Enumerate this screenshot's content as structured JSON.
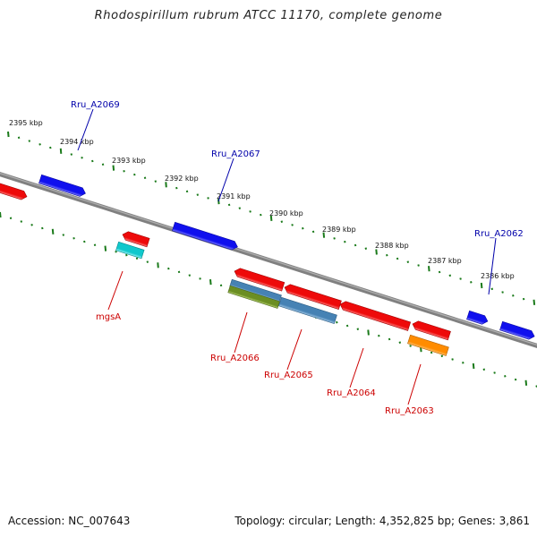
{
  "title": "Rhodospirillum rubrum ATCC 11170, complete genome",
  "footer": {
    "accession": "Accession: NC_007643",
    "summary": "Topology: circular; Length: 4,352,825 bp; Genes: 3,861"
  },
  "scale": {
    "ticks": [
      "2395 kbp",
      "2394 kbp",
      "2393 kbp",
      "2392 kbp",
      "2391 kbp",
      "2390 kbp",
      "2389 kbp",
      "2388 kbp",
      "2387 kbp",
      "2386 kbp"
    ]
  },
  "colors": {
    "backbone": "#808080",
    "tick": "#1a7a1a",
    "label_forward": "#0000aa",
    "label_reverse": "#cc0000",
    "blue": "#1010ee",
    "red": "#ee0a0a",
    "cyan": "#10c8cc",
    "steel": "#4682b4",
    "olive": "#6b8e23",
    "orange": "#ff8c00"
  },
  "genes": {
    "forward": [
      {
        "label": "Rru_A2069"
      },
      {
        "label": "Rru_A2067"
      },
      {
        "label": "Rru_A2062"
      }
    ],
    "reverse": [
      {
        "label": "mgsA"
      },
      {
        "label": "Rru_A2066"
      },
      {
        "label": "Rru_A2065"
      },
      {
        "label": "Rru_A2064"
      },
      {
        "label": "Rru_A2063"
      }
    ]
  }
}
